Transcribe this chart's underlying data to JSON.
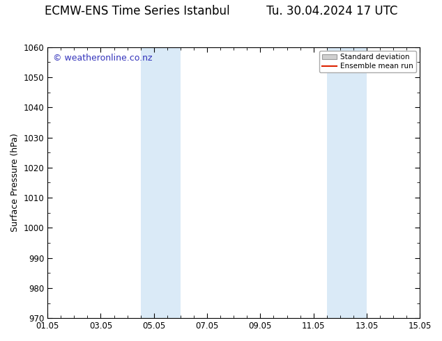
{
  "title_left": "ECMW-ENS Time Series Istanbul",
  "title_right": "Tu. 30.04.2024 17 UTC",
  "ylabel": "Surface Pressure (hPa)",
  "ylim": [
    970,
    1060
  ],
  "yticks": [
    970,
    980,
    990,
    1000,
    1010,
    1020,
    1030,
    1040,
    1050,
    1060
  ],
  "xtick_labels": [
    "01.05",
    "03.05",
    "05.05",
    "07.05",
    "09.05",
    "11.05",
    "13.05",
    "15.05"
  ],
  "xtick_positions": [
    0,
    2,
    4,
    6,
    8,
    10,
    12,
    14
  ],
  "xlim": [
    0,
    14
  ],
  "shaded_regions": [
    {
      "xmin": 3.5,
      "xmax": 5.0,
      "color": "#daeaf7"
    },
    {
      "xmin": 10.5,
      "xmax": 12.0,
      "color": "#daeaf7"
    }
  ],
  "watermark_text": "© weatheronline.co.nz",
  "watermark_color": "#3333bb",
  "watermark_fontsize": 9,
  "legend_std_dev_color": "#d0d0d0",
  "legend_std_edge_color": "#999999",
  "legend_mean_color": "#dd2200",
  "title_fontsize": 12,
  "tick_fontsize": 8.5,
  "ylabel_fontsize": 9,
  "background_color": "#ffffff",
  "plot_bg_color": "#ffffff",
  "grid_color": "#cccccc",
  "border_color": "#000000",
  "title_gap": "          "
}
